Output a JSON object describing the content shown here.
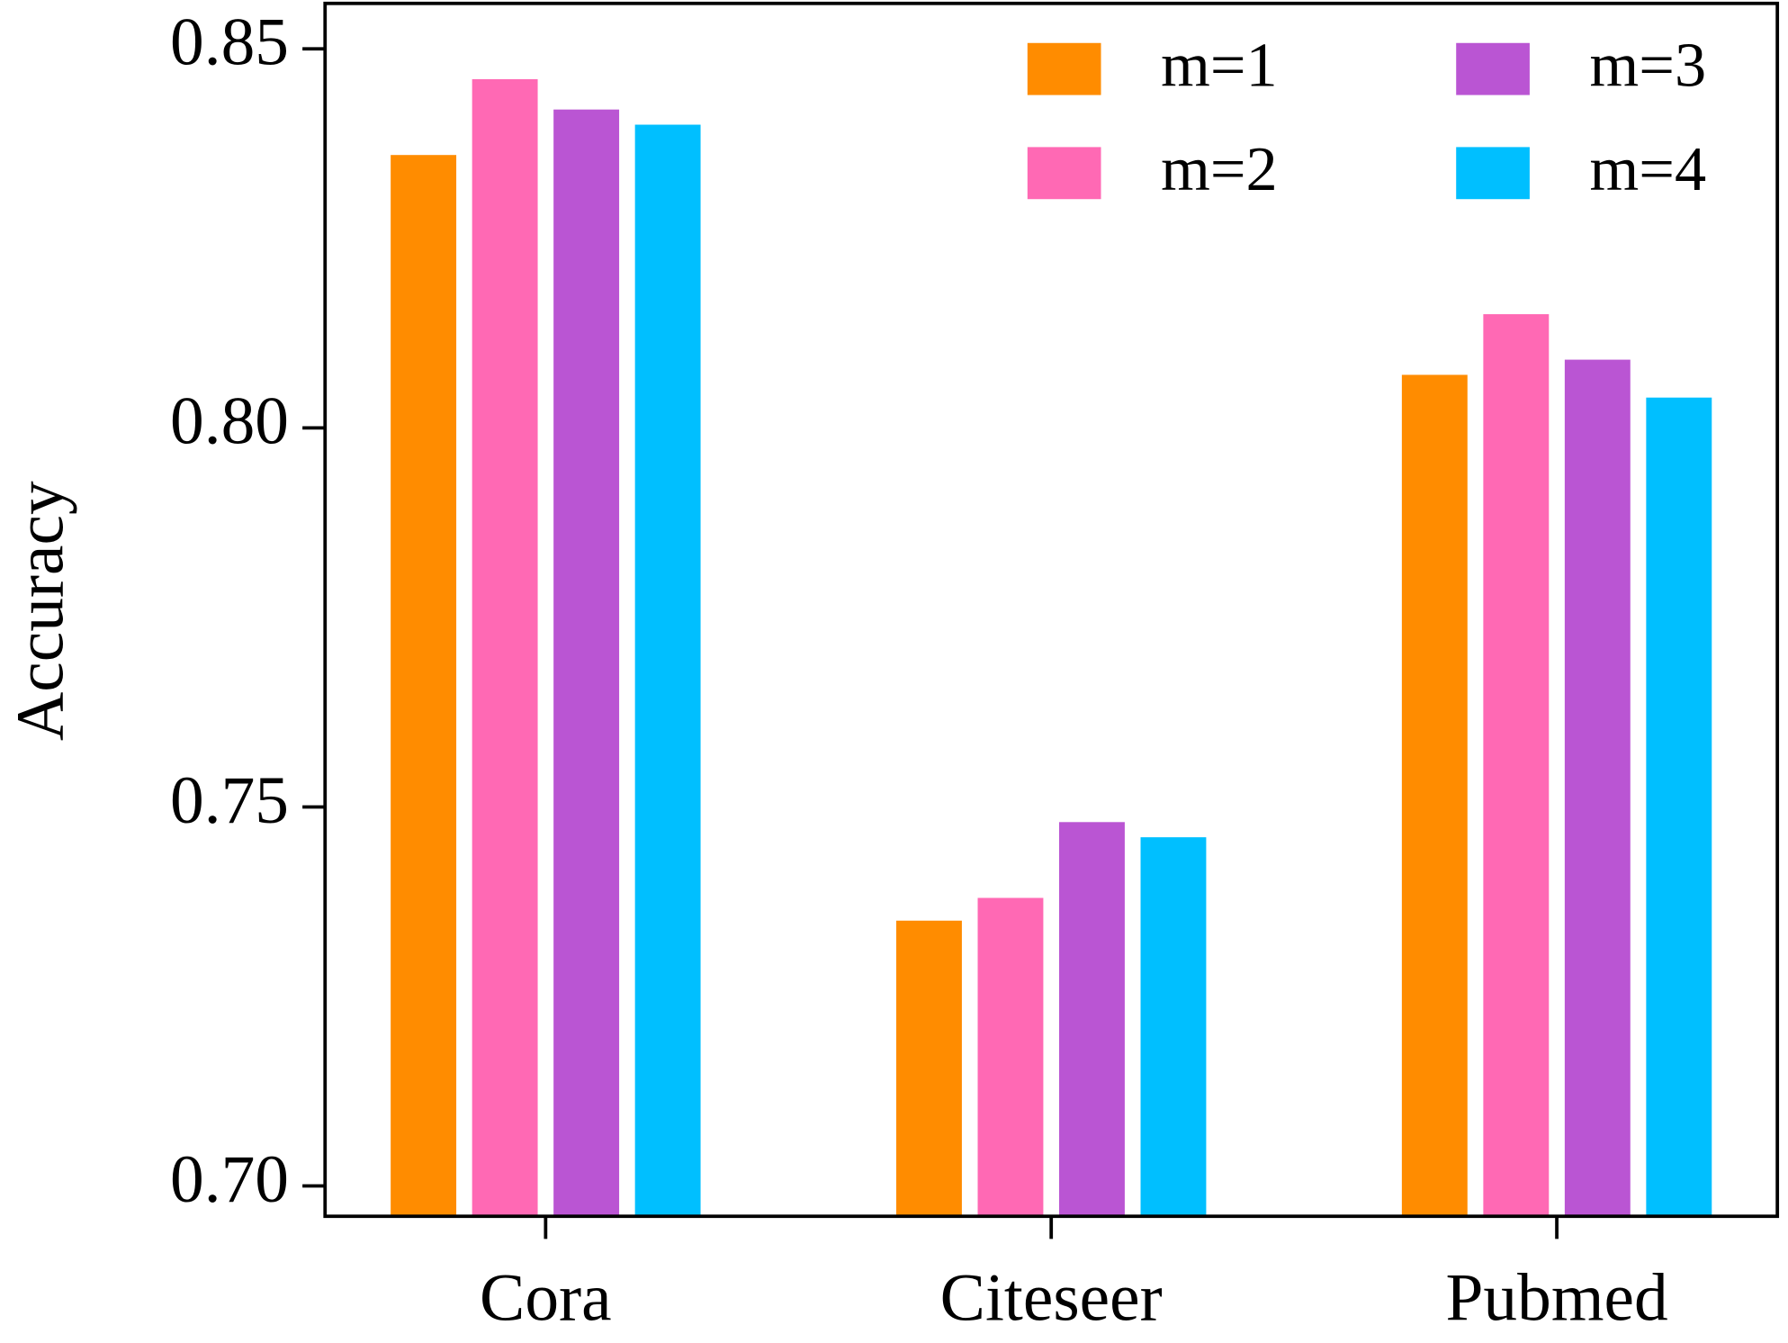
{
  "chart_data": {
    "type": "bar",
    "ylabel": "Accuracy",
    "categories": [
      "Cora",
      "Citeseer",
      "Pubmed"
    ],
    "series": [
      {
        "name": "m=1",
        "color": "#ff8c00",
        "values": [
          0.836,
          0.735,
          0.807
        ]
      },
      {
        "name": "m=2",
        "color": "#ff69b4",
        "values": [
          0.846,
          0.738,
          0.815
        ]
      },
      {
        "name": "m=3",
        "color": "#ba55d3",
        "values": [
          0.842,
          0.748,
          0.809
        ]
      },
      {
        "name": "m=4",
        "color": "#00bfff",
        "values": [
          0.84,
          0.746,
          0.804
        ]
      }
    ],
    "ylim": [
      0.696,
      0.856
    ],
    "yticks": [
      {
        "value": 0.7,
        "label": "0.70"
      },
      0.75,
      {
        "value": 0.8,
        "label": "0.80"
      },
      0.85
    ],
    "grid": false,
    "legend": "upper right",
    "legend_columns": 2
  }
}
